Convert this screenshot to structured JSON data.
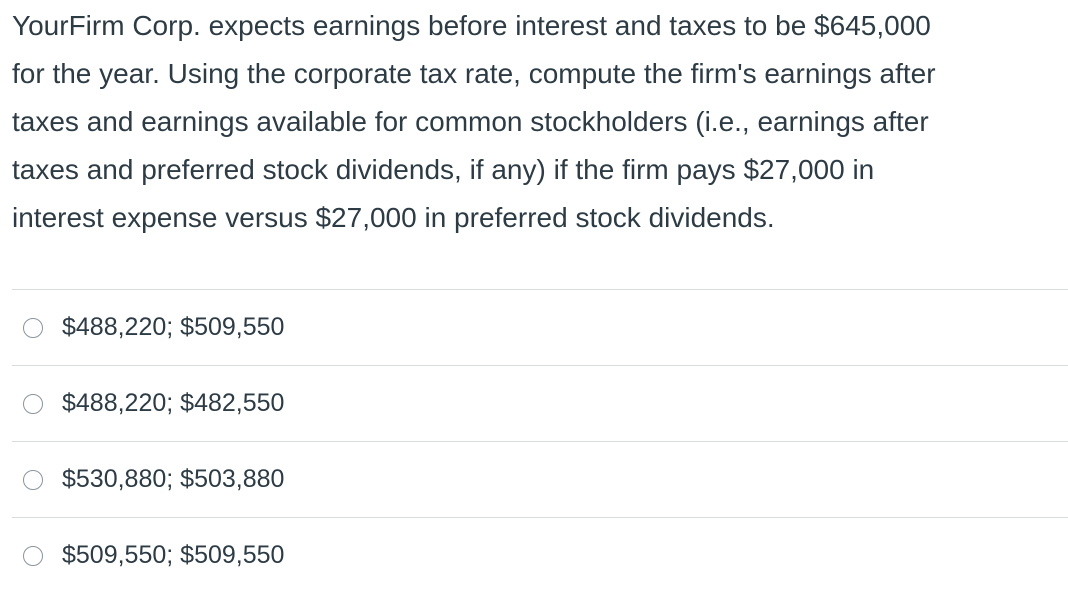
{
  "question": {
    "lines": [
      "YourFirm Corp. expects earnings before interest and taxes to be $645,000",
      "for the year. Using the corporate tax rate, compute the firm's earnings after",
      "taxes and earnings available for common stockholders (i.e., earnings after",
      "taxes and preferred stock dividends, if any) if the firm pays $27,000 in",
      "interest expense versus $27,000 in preferred stock dividends."
    ]
  },
  "answers": [
    {
      "label": "$488,220; $509,550",
      "selected": false
    },
    {
      "label": "$488,220; $482,550",
      "selected": false
    },
    {
      "label": "$530,880; $503,880",
      "selected": false
    },
    {
      "label": "$509,550; $509,550",
      "selected": false
    }
  ]
}
